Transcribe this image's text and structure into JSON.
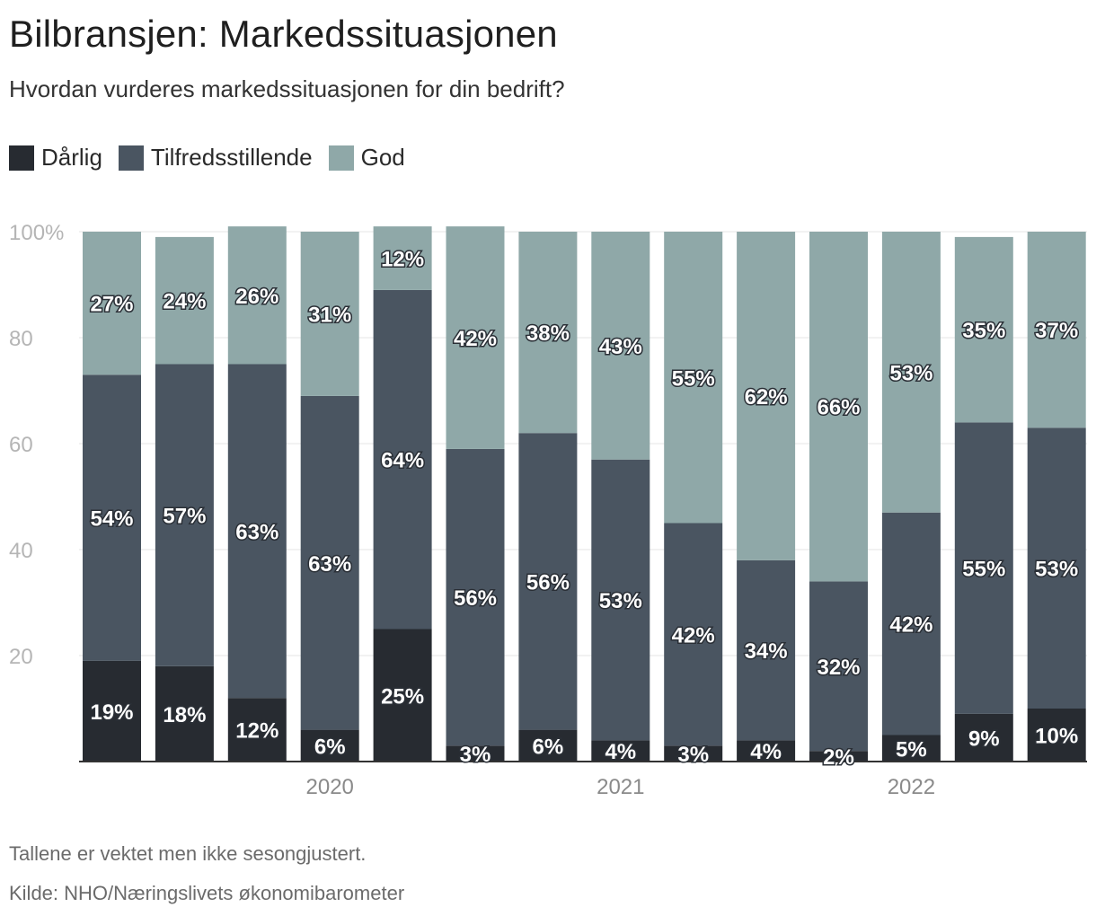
{
  "chart_data": {
    "type": "bar",
    "stacked": true,
    "title": "Bilbransjen: Markedssituasjonen",
    "subtitle": "Hvordan vurderes markedssituasjonen for din bedrift?",
    "y_ticks": [
      "20",
      "40",
      "60",
      "80",
      "100%"
    ],
    "ylim": [
      0,
      100
    ],
    "x_period_labels": [
      "2020",
      "2021",
      "2022"
    ],
    "series": [
      {
        "name": "Dårlig",
        "color": "#272b31",
        "values": [
          19,
          18,
          12,
          6,
          25,
          3,
          6,
          4,
          3,
          4,
          2,
          5,
          9,
          10
        ],
        "labels": [
          "19%",
          "18%",
          "12%",
          "6%",
          "25%",
          "3%",
          "6%",
          "4%",
          "3%",
          "4%",
          "2%",
          "5%",
          "9%",
          "10%"
        ]
      },
      {
        "name": "Tilfredsstillende",
        "color": "#4a5561",
        "values": [
          54,
          57,
          63,
          63,
          64,
          56,
          56,
          53,
          42,
          34,
          32,
          42,
          55,
          53
        ],
        "labels": [
          "54%",
          "57%",
          "63%",
          "63%",
          "64%",
          "56%",
          "56%",
          "53%",
          "42%",
          "34%",
          "32%",
          "42%",
          "55%",
          "53%"
        ]
      },
      {
        "name": "God",
        "color": "#8fa8a8",
        "values": [
          27,
          24,
          26,
          31,
          12,
          42,
          38,
          43,
          55,
          62,
          66,
          53,
          35,
          37
        ],
        "labels": [
          "27%",
          "24%",
          "26%",
          "31%",
          "12%",
          "42%",
          "38%",
          "43%",
          "55%",
          "62%",
          "66%",
          "53%",
          "35%",
          "37%"
        ]
      }
    ]
  },
  "notes": {
    "weighting": "Tallene er vektet men ikke sesongjustert.",
    "source": "Kilde: NHO/Næringslivets økonomibarometer"
  }
}
